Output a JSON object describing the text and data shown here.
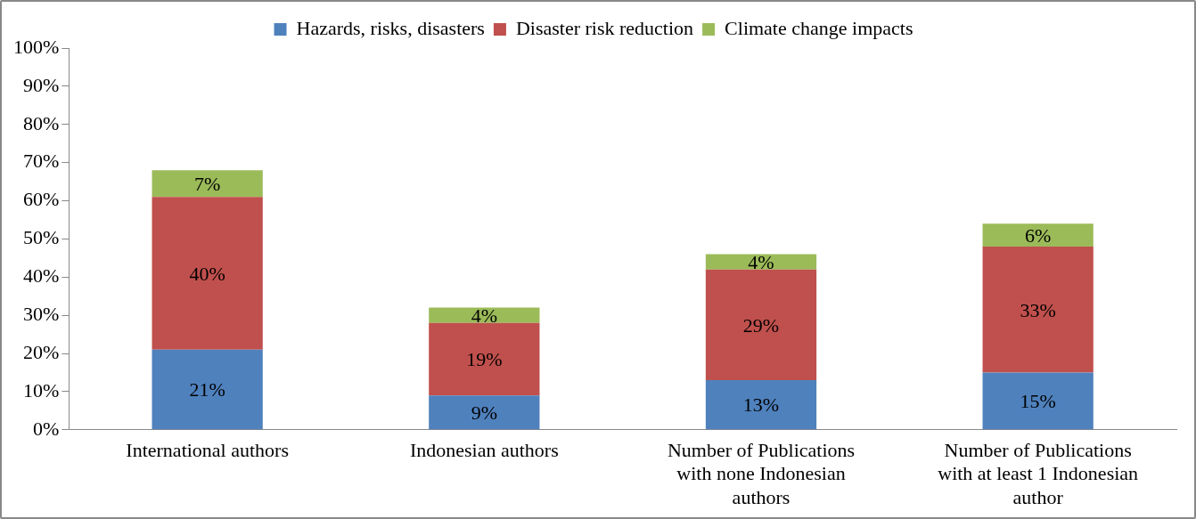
{
  "chart_data": {
    "type": "bar",
    "stacked": true,
    "legend": "top",
    "grid": false,
    "categories": [
      "International authors",
      "Indonesian authors",
      "Number of Publications with none Indonesian authors",
      "Number of Publications with at least 1 Indonesian author"
    ],
    "ylim": [
      0,
      100
    ],
    "yticks": [
      {
        "value": 0,
        "label": "0%"
      },
      {
        "value": 10,
        "label": "10%"
      },
      {
        "value": 20,
        "label": "20%"
      },
      {
        "value": 30,
        "label": "30%"
      },
      {
        "value": 40,
        "label": "40%"
      },
      {
        "value": 50,
        "label": "50%"
      },
      {
        "value": 60,
        "label": "60%"
      },
      {
        "value": 70,
        "label": "70%"
      },
      {
        "value": 80,
        "label": "80%"
      },
      {
        "value": 90,
        "label": "90%"
      },
      {
        "value": 100,
        "label": "100%"
      }
    ],
    "series": [
      {
        "name": "Hazards, risks, disasters",
        "color": "#4f81bd",
        "values": [
          21,
          9,
          13,
          15
        ],
        "value_labels": [
          "21%",
          "9%",
          "13%",
          "15%"
        ]
      },
      {
        "name": "Disaster risk reduction",
        "color": "#c0504d",
        "values": [
          40,
          19,
          29,
          33
        ],
        "value_labels": [
          "40%",
          "19%",
          "29%",
          "33%"
        ]
      },
      {
        "name": "Climate change impacts",
        "color": "#9bbb59",
        "values": [
          7,
          4,
          4,
          6
        ],
        "value_labels": [
          "7%",
          "4%",
          "4%",
          "6%"
        ]
      }
    ]
  }
}
